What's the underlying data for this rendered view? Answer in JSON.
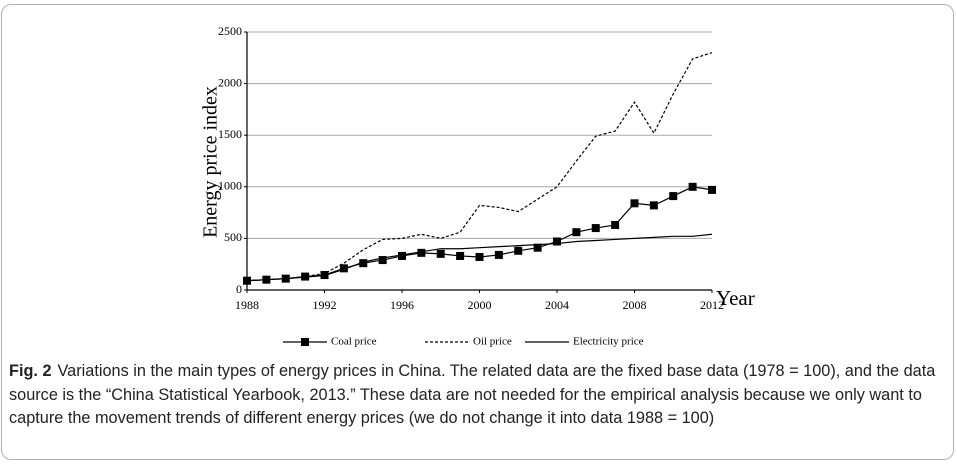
{
  "chart_data": {
    "type": "line",
    "y_label": "Energy price index",
    "x_label": "Year",
    "x": [
      1988,
      1989,
      1990,
      1991,
      1992,
      1993,
      1994,
      1995,
      1996,
      1997,
      1998,
      1999,
      2000,
      2001,
      2002,
      2003,
      2004,
      2005,
      2006,
      2007,
      2008,
      2009,
      2010,
      2011,
      2012
    ],
    "xlim": [
      1988,
      2012
    ],
    "xticks": [
      1988,
      1992,
      1996,
      2000,
      2004,
      2008,
      2012
    ],
    "ylim": [
      0,
      2500
    ],
    "yticks": [
      0,
      500,
      1000,
      1500,
      2000,
      2500
    ],
    "grid": true,
    "legend": "bottom",
    "series": [
      {
        "name": "Coal price",
        "color": "#000000",
        "marker": "square",
        "dash": "solid",
        "values": [
          90,
          100,
          110,
          130,
          145,
          210,
          260,
          290,
          330,
          360,
          350,
          330,
          320,
          340,
          380,
          410,
          470,
          560,
          600,
          630,
          840,
          820,
          910,
          1000,
          970
        ]
      },
      {
        "name": "Oil price",
        "color": "#000000",
        "marker": "none",
        "dash": "dotted",
        "values": [
          90,
          100,
          110,
          130,
          160,
          260,
          390,
          490,
          500,
          540,
          500,
          560,
          820,
          800,
          760,
          880,
          1000,
          1250,
          1490,
          1540,
          1820,
          1520,
          1900,
          2240,
          2300
        ]
      },
      {
        "name": "Electricity price",
        "color": "#000000",
        "marker": "none",
        "dash": "solid",
        "values": [
          90,
          100,
          110,
          125,
          140,
          200,
          270,
          310,
          340,
          370,
          400,
          400,
          410,
          420,
          430,
          440,
          450,
          470,
          480,
          490,
          500,
          510,
          520,
          520,
          540
        ]
      }
    ]
  },
  "caption": {
    "label": "Fig. 2",
    "text": "Variations in the main types of energy prices in China. The related data are the fixed base data (1978 = 100), and the data source is the “China Statistical Yearbook, 2013.” These data are not needed for the empirical analysis because we only want to capture the movement trends of different energy prices (we do not change it into data 1988 = 100)"
  }
}
